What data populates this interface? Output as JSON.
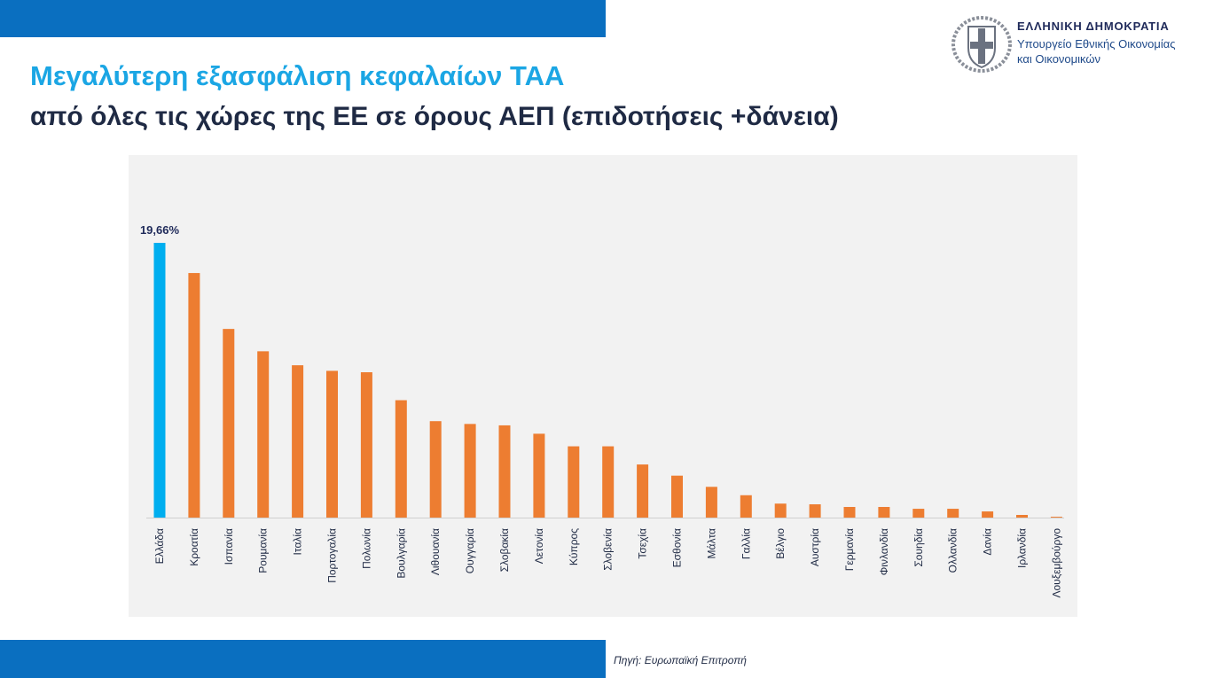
{
  "title_line1": "Μεγαλύτερη εξασφάλιση κεφαλαίων ΤΑΑ",
  "title_line2": "από όλες τις χώρες της ΕΕ σε όρους ΑΕΠ (επιδοτήσεις +δάνεια)",
  "header": {
    "republic": "ΕΛΛΗΝΙΚΗ ΔΗΜΟΚΡΑΤΙΑ",
    "ministry_line1": "Υπουργείο Εθνικής Οικονομίας",
    "ministry_line2": "και Οικονομικών",
    "logo_icon": "greek-coat-of-arms-icon"
  },
  "source": "Πηγή: Ευρωπαϊκή Επιτροπή",
  "colors": {
    "highlight": "#00aeef",
    "bars": "#ed7d31",
    "brand": "#0a6fc0"
  },
  "chart_data": {
    "type": "bar",
    "title": "",
    "xlabel": "",
    "ylabel": "",
    "ylim": [
      0,
      21
    ],
    "grid": false,
    "categories": [
      "Ελλάδα",
      "Κροατία",
      "Ισπανία",
      "Ρουμανία",
      "Ιταλία",
      "Πορτογαλία",
      "Πολωνία",
      "Βουλγαρία",
      "Λιθουανία",
      "Ουγγαρία",
      "Σλοβακία",
      "Λετονία",
      "Κύπρος",
      "Σλοβενία",
      "Τσεχία",
      "Εσθονία",
      "Μάλτα",
      "Γαλλία",
      "Βέλγιο",
      "Αυστρία",
      "Γερμανία",
      "Φινλανδία",
      "Σουηδία",
      "Ολλανδία",
      "Δανία",
      "Ιρλανδία",
      "Λουξεμβούργο"
    ],
    "values": [
      19.66,
      17.5,
      13.5,
      11.9,
      10.9,
      10.5,
      10.4,
      8.4,
      6.9,
      6.7,
      6.6,
      6.0,
      5.1,
      5.1,
      3.8,
      3.0,
      2.2,
      1.6,
      1.0,
      0.95,
      0.76,
      0.76,
      0.63,
      0.63,
      0.44,
      0.19,
      0.06
    ],
    "data_labels": [
      {
        "category": "Ελλάδα",
        "text": "19,66%"
      }
    ],
    "highlight_category": "Ελλάδα"
  }
}
